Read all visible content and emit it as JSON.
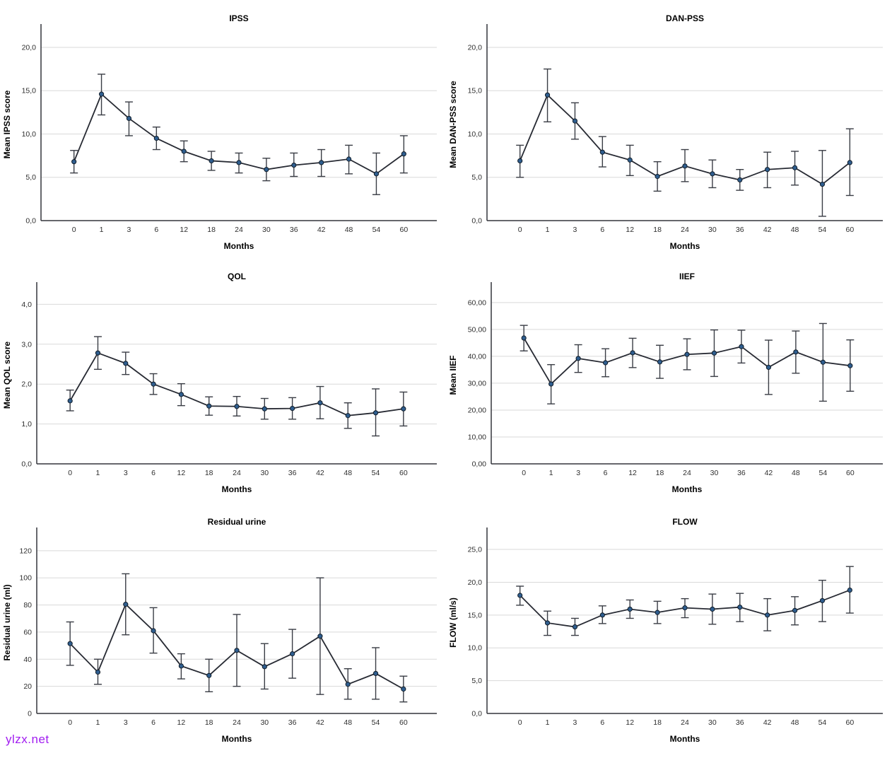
{
  "watermark": {
    "text": "ylzx.net",
    "color": "#a11cf0"
  },
  "colors": {
    "marker_fill": "#2f5e8f",
    "marker_stroke": "#111d29",
    "line": "#272a33",
    "error_bar": "#3a3d45",
    "gridline": "#d9d9d9",
    "axis": "#33353c",
    "text": "#000000",
    "background": "#ffffff"
  },
  "chart_data": [
    {
      "id": "ipss",
      "type": "line",
      "title": "IPSS",
      "xlabel": "Months",
      "ylabel": "Mean IPSS score",
      "legend": "none",
      "grid": "horizontal",
      "marker": "circle-with-error-bars",
      "categories": [
        "0",
        "1",
        "3",
        "6",
        "12",
        "18",
        "24",
        "30",
        "36",
        "42",
        "48",
        "54",
        "60"
      ],
      "values": [
        6.8,
        14.6,
        11.8,
        9.5,
        8.0,
        6.9,
        6.7,
        5.9,
        6.4,
        6.7,
        7.1,
        5.4,
        7.7
      ],
      "ci_low": [
        5.5,
        12.2,
        9.8,
        8.2,
        6.8,
        5.8,
        5.5,
        4.6,
        5.1,
        5.1,
        5.4,
        3.0,
        5.5
      ],
      "ci_high": [
        8.1,
        16.9,
        13.7,
        10.8,
        9.2,
        8.0,
        7.8,
        7.2,
        7.8,
        8.2,
        8.7,
        7.8,
        9.8
      ],
      "ylim": [
        0,
        22.2
      ],
      "ytick_values": [
        0,
        5,
        10,
        15,
        20
      ],
      "ytick_labels": [
        "0,0",
        "5,0",
        "10,0",
        "15,0",
        "20,0"
      ]
    },
    {
      "id": "dan-pss",
      "type": "line",
      "title": "DAN-PSS",
      "xlabel": "Months",
      "ylabel": "Mean DAN-PSS score",
      "legend": "none",
      "grid": "horizontal",
      "marker": "circle-with-error-bars",
      "categories": [
        "0",
        "1",
        "3",
        "6",
        "12",
        "18",
        "24",
        "30",
        "36",
        "42",
        "48",
        "54",
        "60"
      ],
      "values": [
        6.9,
        14.5,
        11.5,
        7.9,
        7.0,
        5.1,
        6.3,
        5.4,
        4.7,
        5.9,
        6.1,
        4.2,
        6.7
      ],
      "ci_low": [
        5.0,
        11.4,
        9.4,
        6.2,
        5.2,
        3.4,
        4.5,
        3.8,
        3.5,
        3.8,
        4.1,
        0.5,
        2.9
      ],
      "ci_high": [
        8.7,
        17.5,
        13.6,
        9.7,
        8.7,
        6.8,
        8.2,
        7.0,
        5.9,
        7.9,
        8.0,
        8.1,
        10.6
      ],
      "ylim": [
        0,
        22.2
      ],
      "ytick_values": [
        0,
        5,
        10,
        15,
        20
      ],
      "ytick_labels": [
        "0,0",
        "5,0",
        "10,0",
        "15,0",
        "20,0"
      ]
    },
    {
      "id": "qol",
      "type": "line",
      "title": "QOL",
      "xlabel": "Months",
      "ylabel": "Mean QOL score",
      "legend": "none",
      "grid": "horizontal",
      "marker": "circle-with-error-bars",
      "categories": [
        "0",
        "1",
        "3",
        "6",
        "12",
        "18",
        "24",
        "30",
        "36",
        "42",
        "48",
        "54",
        "60"
      ],
      "values": [
        1.58,
        2.78,
        2.52,
        2.0,
        1.74,
        1.45,
        1.44,
        1.38,
        1.39,
        1.53,
        1.21,
        1.28,
        1.38
      ],
      "ci_low": [
        1.33,
        2.37,
        2.24,
        1.74,
        1.46,
        1.22,
        1.2,
        1.12,
        1.12,
        1.13,
        0.89,
        0.7,
        0.95
      ],
      "ci_high": [
        1.85,
        3.19,
        2.8,
        2.26,
        2.01,
        1.68,
        1.69,
        1.64,
        1.66,
        1.94,
        1.53,
        1.88,
        1.8
      ],
      "ylim": [
        0,
        4.45
      ],
      "ytick_values": [
        0,
        1,
        2,
        3,
        4
      ],
      "ytick_labels": [
        "0,0",
        "1,0",
        "2,0",
        "3,0",
        "4,0"
      ]
    },
    {
      "id": "iief",
      "type": "line",
      "title": "IIEF",
      "xlabel": "Months",
      "ylabel": "Mean IIEF",
      "legend": "none",
      "grid": "horizontal",
      "marker": "circle-with-error-bars",
      "categories": [
        "0",
        "1",
        "3",
        "6",
        "12",
        "18",
        "24",
        "30",
        "36",
        "42",
        "48",
        "54",
        "60"
      ],
      "values": [
        46.8,
        29.7,
        39.2,
        37.6,
        41.3,
        37.9,
        40.7,
        41.2,
        43.6,
        35.9,
        41.6,
        37.8,
        36.5
      ],
      "ci_low": [
        42.0,
        22.3,
        34.0,
        32.4,
        35.8,
        31.8,
        35.0,
        32.5,
        37.5,
        25.8,
        33.7,
        23.3,
        27.0
      ],
      "ci_high": [
        51.5,
        36.9,
        44.3,
        42.8,
        46.7,
        44.1,
        46.5,
        49.8,
        49.7,
        46.0,
        49.4,
        52.2,
        46.1
      ],
      "ylim": [
        0,
        66
      ],
      "ytick_values": [
        0,
        10,
        20,
        30,
        40,
        50,
        60
      ],
      "ytick_labels": [
        "0,00",
        "10,00",
        "20,00",
        "30,00",
        "40,00",
        "50,00",
        "60,00"
      ]
    },
    {
      "id": "residual-urine",
      "type": "line",
      "title": "Residual urine",
      "xlabel": "Months",
      "ylabel": "Residual urine (ml)",
      "legend": "none",
      "grid": "horizontal",
      "marker": "circle-with-error-bars",
      "categories": [
        "0",
        "1",
        "3",
        "6",
        "12",
        "18",
        "24",
        "30",
        "36",
        "42",
        "48",
        "54",
        "60"
      ],
      "values": [
        51.5,
        30.5,
        80.5,
        61.0,
        35.0,
        28.0,
        46.5,
        34.5,
        44.0,
        57.0,
        21.5,
        29.5,
        18.0
      ],
      "ci_low": [
        35.5,
        21.5,
        58.0,
        44.5,
        25.5,
        16.0,
        20.0,
        18.0,
        26.0,
        14.0,
        10.5,
        10.5,
        8.5
      ],
      "ci_high": [
        67.5,
        40.0,
        103.0,
        78.0,
        44.0,
        40.0,
        73.0,
        51.5,
        62.0,
        100.0,
        33.0,
        48.5,
        27.5
      ],
      "ylim": [
        0,
        134
      ],
      "ytick_values": [
        0,
        20,
        40,
        60,
        80,
        100,
        120
      ],
      "ytick_labels": [
        "0",
        "20",
        "40",
        "60",
        "80",
        "100",
        "120"
      ]
    },
    {
      "id": "flow",
      "type": "line",
      "title": "FLOW",
      "xlabel": "Months",
      "ylabel": "FLOW (ml/s)",
      "legend": "none",
      "grid": "horizontal",
      "marker": "circle-with-error-bars",
      "categories": [
        "0",
        "1",
        "3",
        "6",
        "12",
        "18",
        "24",
        "30",
        "36",
        "42",
        "48",
        "54",
        "60"
      ],
      "values": [
        18.0,
        13.8,
        13.2,
        15.0,
        15.9,
        15.4,
        16.1,
        15.9,
        16.2,
        15.0,
        15.7,
        17.2,
        18.8
      ],
      "ci_low": [
        16.5,
        11.9,
        11.9,
        13.7,
        14.5,
        13.7,
        14.6,
        13.6,
        14.0,
        12.6,
        13.5,
        14.0,
        15.3
      ],
      "ci_high": [
        19.4,
        15.6,
        14.5,
        16.4,
        17.3,
        17.1,
        17.5,
        18.2,
        18.3,
        17.5,
        17.8,
        20.3,
        22.4
      ],
      "ylim": [
        0,
        27.7
      ],
      "ytick_values": [
        0,
        5,
        10,
        15,
        20,
        25
      ],
      "ytick_labels": [
        "0,0",
        "5,0",
        "10,0",
        "15,0",
        "20,0",
        "25,0"
      ]
    }
  ]
}
